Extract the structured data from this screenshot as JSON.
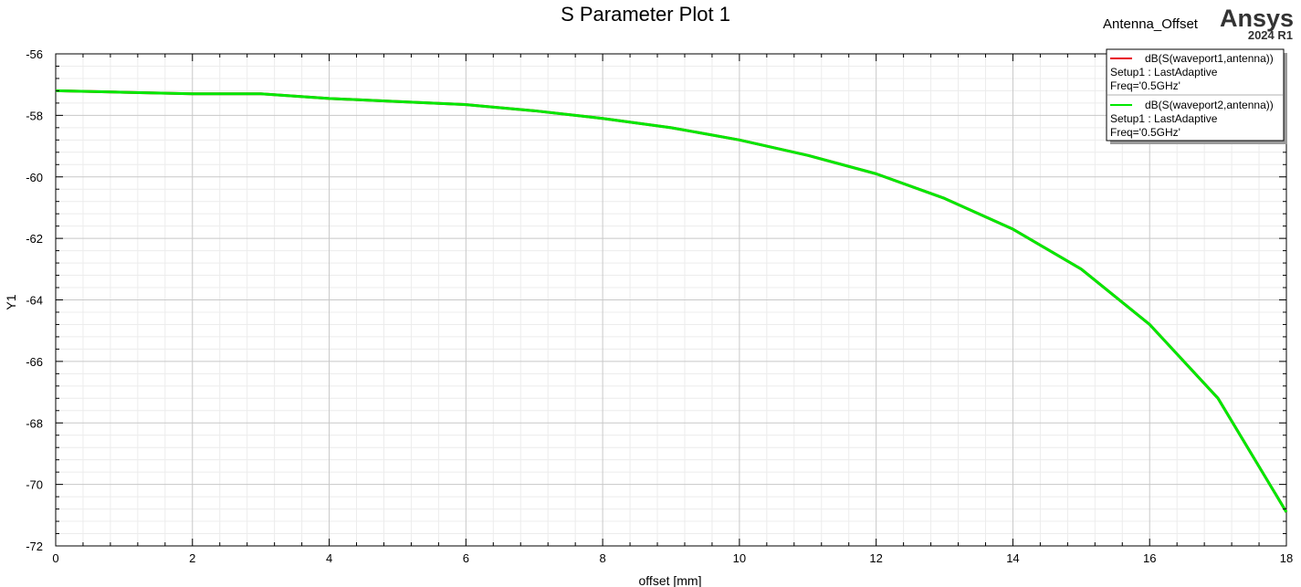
{
  "project_name": "Antenna_Offset",
  "brand": {
    "name": "Ansys",
    "version": "2024 R1"
  },
  "chart_data": {
    "type": "line",
    "title": "S Parameter Plot 1",
    "xlabel": "offset [mm]",
    "ylabel": "Y1",
    "xlim": [
      0,
      18
    ],
    "ylim": [
      -72,
      -56
    ],
    "x_major_ticks": [
      0,
      2,
      4,
      6,
      8,
      10,
      12,
      14,
      16,
      18
    ],
    "y_major_ticks": [
      -72,
      -70,
      -68,
      -66,
      -64,
      -62,
      -60,
      -58,
      -56
    ],
    "x_tick_labels": [
      "0",
      "2",
      "4",
      "6",
      "8",
      "10",
      "12",
      "14",
      "16",
      "18"
    ],
    "y_tick_labels": [
      "-72",
      "-70",
      "-68",
      "-66",
      "-64",
      "-62",
      "-60",
      "-58",
      "-56"
    ],
    "grid": true,
    "legend_position": "top-right",
    "series": [
      {
        "name": "dB(S(waveport1,antenna))",
        "setup": "Setup1 : LastAdaptive",
        "freq": "Freq='0.5GHz'",
        "color": "#e8001c",
        "x": [
          0,
          1,
          2,
          3,
          4,
          5,
          6,
          7,
          8,
          9,
          10,
          11,
          12,
          13,
          14,
          15,
          16,
          17,
          18
        ],
        "values": [
          -57.2,
          -57.25,
          -57.3,
          -57.3,
          -57.45,
          -57.55,
          -57.65,
          -57.85,
          -58.1,
          -58.4,
          -58.8,
          -59.3,
          -59.9,
          -60.7,
          -61.7,
          -63.0,
          -64.8,
          -67.2,
          -70.9
        ]
      },
      {
        "name": "dB(S(waveport2,antenna))",
        "setup": "Setup1 : LastAdaptive",
        "freq": "Freq='0.5GHz'",
        "color": "#00e800",
        "x": [
          0,
          1,
          2,
          3,
          4,
          5,
          6,
          7,
          8,
          9,
          10,
          11,
          12,
          13,
          14,
          15,
          16,
          17,
          18
        ],
        "values": [
          -57.2,
          -57.25,
          -57.3,
          -57.3,
          -57.45,
          -57.55,
          -57.65,
          -57.85,
          -58.1,
          -58.4,
          -58.8,
          -59.3,
          -59.9,
          -60.7,
          -61.7,
          -63.0,
          -64.8,
          -67.2,
          -70.9
        ]
      }
    ]
  }
}
